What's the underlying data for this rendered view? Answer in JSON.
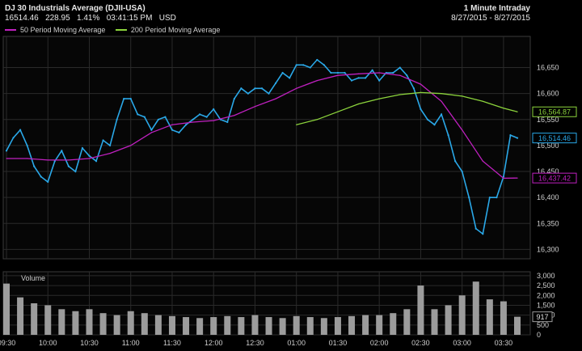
{
  "header": {
    "title": "DJ 30 Industrials Average (DJII-USA)",
    "last": "16514.46",
    "change": "228.95",
    "pct": "1.41%",
    "time": "03:41:15 PM",
    "currency": "USD",
    "interval": "1 Minute Intraday",
    "date_range": "8/27/2015 - 8/27/2015"
  },
  "colors": {
    "price": "#2aa8e8",
    "ma50": "#c020c0",
    "ma200": "#8cd43c",
    "volume": "#9c9c9c",
    "grid": "#2a2a2a",
    "background": "#000000"
  },
  "chart_data": [
    {
      "type": "line",
      "title": "DJ 30 Industrials Average (DJII-USA)",
      "x_ticks": [
        "09:30",
        "10:00",
        "10:30",
        "11:00",
        "11:30",
        "12:00",
        "12:30",
        "01:00",
        "01:30",
        "02:00",
        "02:30",
        "03:00",
        "03:30"
      ],
      "y_ticks": [
        16300,
        16350,
        16400,
        16450,
        16500,
        16550,
        16600,
        16650
      ],
      "ylim": [
        16282,
        16710
      ],
      "grid": true,
      "legend": "top-left",
      "price_last_label": "16,514.46",
      "ma50_last_label": "16,437.42",
      "ma200_last_label": "16,564.87",
      "series": [
        {
          "name": "Price",
          "x": [
            "09:30",
            "09:35",
            "09:40",
            "09:45",
            "09:50",
            "09:55",
            "10:00",
            "10:05",
            "10:10",
            "10:15",
            "10:20",
            "10:25",
            "10:30",
            "10:35",
            "10:40",
            "10:45",
            "10:50",
            "10:55",
            "11:00",
            "11:05",
            "11:10",
            "11:15",
            "11:20",
            "11:25",
            "11:30",
            "11:35",
            "11:40",
            "11:45",
            "11:50",
            "11:55",
            "12:00",
            "12:05",
            "12:10",
            "12:15",
            "12:20",
            "12:25",
            "12:30",
            "12:35",
            "12:40",
            "12:45",
            "12:50",
            "12:55",
            "01:00",
            "01:05",
            "01:10",
            "01:15",
            "01:20",
            "01:25",
            "01:30",
            "01:35",
            "01:40",
            "01:45",
            "01:50",
            "01:55",
            "02:00",
            "02:05",
            "02:10",
            "02:15",
            "02:20",
            "02:25",
            "02:30",
            "02:35",
            "02:40",
            "02:45",
            "02:50",
            "02:55",
            "03:00",
            "03:05",
            "03:10",
            "03:15",
            "03:20",
            "03:25",
            "03:30",
            "03:35",
            "03:40"
          ],
          "values": [
            16490,
            16515,
            16530,
            16500,
            16460,
            16440,
            16430,
            16470,
            16490,
            16460,
            16450,
            16495,
            16480,
            16470,
            16510,
            16500,
            16550,
            16590,
            16590,
            16560,
            16555,
            16530,
            16550,
            16555,
            16530,
            16525,
            16540,
            16550,
            16560,
            16555,
            16570,
            16550,
            16545,
            16590,
            16610,
            16600,
            16610,
            16610,
            16600,
            16620,
            16640,
            16630,
            16655,
            16655,
            16650,
            16665,
            16655,
            16640,
            16640,
            16640,
            16625,
            16630,
            16630,
            16645,
            16625,
            16640,
            16640,
            16650,
            16635,
            16610,
            16570,
            16550,
            16540,
            16560,
            16520,
            16470,
            16450,
            16400,
            16340,
            16330,
            16400,
            16400,
            16440,
            16520,
            16514.46
          ]
        },
        {
          "name": "50 Period Moving Average",
          "x": [
            "09:30",
            "09:45",
            "10:00",
            "10:15",
            "10:30",
            "10:45",
            "11:00",
            "11:15",
            "11:30",
            "11:45",
            "12:00",
            "12:15",
            "12:30",
            "12:45",
            "01:00",
            "01:15",
            "01:30",
            "01:45",
            "02:00",
            "02:15",
            "02:30",
            "02:45",
            "03:00",
            "03:15",
            "03:30",
            "03:40"
          ],
          "values": [
            16475,
            16475,
            16472,
            16472,
            16475,
            16485,
            16500,
            16525,
            16540,
            16545,
            16548,
            16558,
            16575,
            16590,
            16610,
            16625,
            16635,
            16638,
            16640,
            16635,
            16618,
            16585,
            16530,
            16470,
            16437,
            16437.42
          ]
        },
        {
          "name": "200 Period Moving Average",
          "x": [
            "01:00",
            "01:15",
            "01:30",
            "01:45",
            "02:00",
            "02:15",
            "02:30",
            "02:45",
            "03:00",
            "03:15",
            "03:30",
            "03:40"
          ],
          "values": [
            16540,
            16550,
            16565,
            16580,
            16590,
            16598,
            16602,
            16600,
            16595,
            16585,
            16572,
            16564.87
          ]
        }
      ]
    },
    {
      "type": "bar",
      "title": "Volume",
      "y_ticks": [
        0,
        500,
        1000,
        1500,
        2000,
        2500,
        3000
      ],
      "ylim": [
        0,
        3200
      ],
      "last_label": "917",
      "series": [
        {
          "name": "Volume",
          "x": [
            "09:30",
            "09:40",
            "09:50",
            "10:00",
            "10:10",
            "10:20",
            "10:30",
            "10:40",
            "10:50",
            "11:00",
            "11:10",
            "11:20",
            "11:30",
            "11:40",
            "11:50",
            "12:00",
            "12:10",
            "12:20",
            "12:30",
            "12:40",
            "12:50",
            "01:00",
            "01:10",
            "01:20",
            "01:30",
            "01:40",
            "01:50",
            "02:00",
            "02:10",
            "02:20",
            "02:30",
            "02:40",
            "02:50",
            "03:00",
            "03:10",
            "03:20",
            "03:30",
            "03:40"
          ],
          "values": [
            2600,
            1900,
            1600,
            1500,
            1300,
            1200,
            1300,
            1100,
            1000,
            1200,
            1100,
            1000,
            950,
            900,
            850,
            900,
            950,
            900,
            1000,
            900,
            850,
            950,
            900,
            850,
            900,
            950,
            1000,
            1000,
            1100,
            1300,
            2500,
            1300,
            1500,
            2000,
            2700,
            1800,
            1700,
            917
          ]
        }
      ]
    }
  ]
}
